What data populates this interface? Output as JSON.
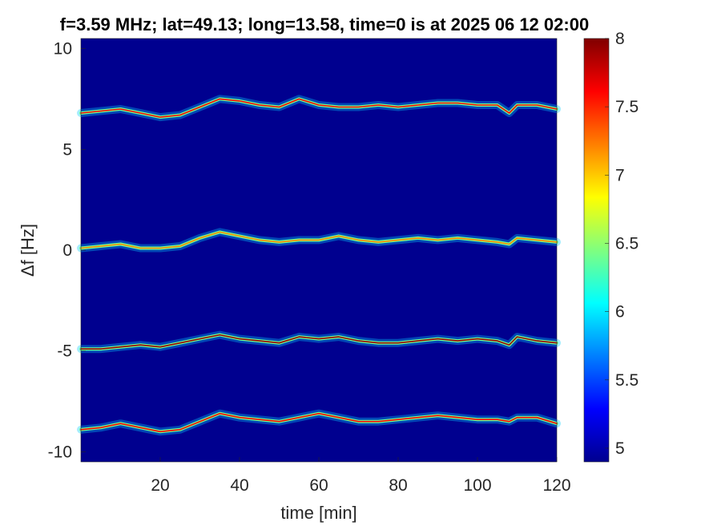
{
  "chart_data": {
    "type": "heatmap",
    "title": "f=3.59 MHz;  lat=49.13; long=13.58, time=0 is at 2025 06 12 02:00",
    "xlabel": "time [min]",
    "ylabel": "Δf [Hz]",
    "xlim": [
      0,
      120
    ],
    "ylim": [
      -10.5,
      10.5
    ],
    "x_ticks": [
      20,
      40,
      60,
      80,
      100,
      120
    ],
    "y_ticks": [
      10,
      5,
      0,
      -5,
      -10
    ],
    "colorbar": {
      "range": [
        4.9,
        8
      ],
      "ticks": [
        "8",
        "7.5",
        "7",
        "6.5",
        "6",
        "5.5",
        "5"
      ],
      "tick_values": [
        8,
        7.5,
        7,
        6.5,
        6,
        5.5,
        5
      ],
      "colormap": "jet"
    },
    "series": [
      {
        "x": [
          0,
          5,
          10,
          15,
          20,
          25,
          30,
          35,
          40,
          45,
          50,
          55,
          60,
          65,
          70,
          75,
          80,
          85,
          90,
          95,
          100,
          105,
          108,
          110,
          115,
          120
        ],
        "y": [
          6.8,
          6.9,
          7.0,
          6.8,
          6.6,
          6.7,
          7.1,
          7.5,
          7.4,
          7.2,
          7.1,
          7.5,
          7.2,
          7.1,
          7.1,
          7.2,
          7.1,
          7.2,
          7.3,
          7.3,
          7.2,
          7.2,
          6.8,
          7.2,
          7.2,
          7.0
        ],
        "peak": 7.6
      },
      {
        "x": [
          0,
          5,
          10,
          15,
          20,
          25,
          30,
          35,
          40,
          45,
          50,
          55,
          60,
          65,
          70,
          75,
          80,
          85,
          90,
          95,
          100,
          105,
          108,
          110,
          115,
          120
        ],
        "y": [
          0.1,
          0.2,
          0.3,
          0.1,
          0.1,
          0.2,
          0.6,
          0.9,
          0.7,
          0.5,
          0.4,
          0.5,
          0.5,
          0.7,
          0.5,
          0.4,
          0.5,
          0.6,
          0.5,
          0.6,
          0.5,
          0.4,
          0.3,
          0.6,
          0.5,
          0.4
        ],
        "peak": 7.2
      },
      {
        "x": [
          0,
          5,
          10,
          15,
          20,
          25,
          30,
          35,
          40,
          45,
          50,
          55,
          60,
          65,
          70,
          75,
          80,
          85,
          90,
          95,
          100,
          105,
          108,
          110,
          115,
          120
        ],
        "y": [
          -4.9,
          -4.9,
          -4.8,
          -4.7,
          -4.8,
          -4.6,
          -4.4,
          -4.2,
          -4.4,
          -4.5,
          -4.6,
          -4.3,
          -4.4,
          -4.3,
          -4.5,
          -4.6,
          -4.6,
          -4.5,
          -4.4,
          -4.5,
          -4.4,
          -4.5,
          -4.7,
          -4.3,
          -4.5,
          -4.6
        ],
        "peak": 7.9
      },
      {
        "x": [
          0,
          5,
          10,
          15,
          20,
          25,
          30,
          35,
          40,
          45,
          50,
          55,
          60,
          65,
          70,
          75,
          80,
          85,
          90,
          95,
          100,
          105,
          108,
          110,
          115,
          120
        ],
        "y": [
          -8.9,
          -8.8,
          -8.6,
          -8.8,
          -9.0,
          -8.9,
          -8.5,
          -8.1,
          -8.3,
          -8.4,
          -8.5,
          -8.3,
          -8.1,
          -8.3,
          -8.5,
          -8.5,
          -8.4,
          -8.3,
          -8.2,
          -8.3,
          -8.4,
          -8.4,
          -8.5,
          -8.3,
          -8.3,
          -8.6
        ],
        "peak": 7.6
      }
    ]
  }
}
